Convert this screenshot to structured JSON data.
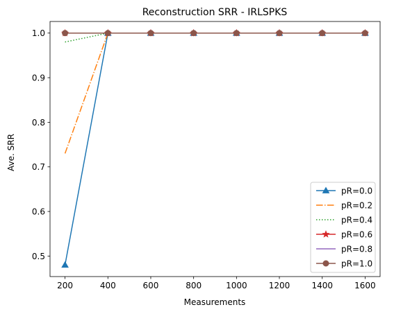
{
  "chart_data": {
    "type": "line",
    "title": "Reconstruction SRR - IRLSPKS",
    "xlabel": "Measurements",
    "ylabel": "Ave. SRR",
    "x": [
      200,
      400,
      600,
      800,
      1000,
      1200,
      1400,
      1600
    ],
    "xticks": [
      200,
      400,
      600,
      800,
      1000,
      1200,
      1400,
      1600
    ],
    "xlim": [
      130,
      1670
    ],
    "yticks": [
      0.5,
      0.6,
      0.7,
      0.8,
      0.9,
      1.0
    ],
    "ytick_labels": [
      "0.5",
      "0.6",
      "0.7",
      "0.8",
      "0.9",
      "1.0"
    ],
    "ylim": [
      0.454,
      1.026
    ],
    "grid": false,
    "legend_position": "lower-right",
    "series": [
      {
        "name": "pR=0.0",
        "values": [
          0.48,
          1.0,
          1.0,
          1.0,
          1.0,
          1.0,
          1.0,
          1.0
        ],
        "color": "#1f77b4",
        "dash": "solid",
        "marker": "triangle"
      },
      {
        "name": "pR=0.2",
        "values": [
          0.73,
          1.0,
          1.0,
          1.0,
          1.0,
          1.0,
          1.0,
          1.0
        ],
        "color": "#ff7f0e",
        "dash": "dashdot",
        "marker": "none"
      },
      {
        "name": "pR=0.4",
        "values": [
          0.98,
          1.0,
          1.0,
          1.0,
          1.0,
          1.0,
          1.0,
          1.0
        ],
        "color": "#2ca02c",
        "dash": "dotted",
        "marker": "none"
      },
      {
        "name": "pR=0.6",
        "values": [
          1.0,
          1.0,
          1.0,
          1.0,
          1.0,
          1.0,
          1.0,
          1.0
        ],
        "color": "#d62728",
        "dash": "solid",
        "marker": "star"
      },
      {
        "name": "pR=0.8",
        "values": [
          1.0,
          1.0,
          1.0,
          1.0,
          1.0,
          1.0,
          1.0,
          1.0
        ],
        "color": "#9467bd",
        "dash": "solid",
        "marker": "none"
      },
      {
        "name": "pR=1.0",
        "values": [
          1.0,
          1.0,
          1.0,
          1.0,
          1.0,
          1.0,
          1.0,
          1.0
        ],
        "color": "#8c564b",
        "dash": "solid",
        "marker": "circle"
      }
    ]
  }
}
